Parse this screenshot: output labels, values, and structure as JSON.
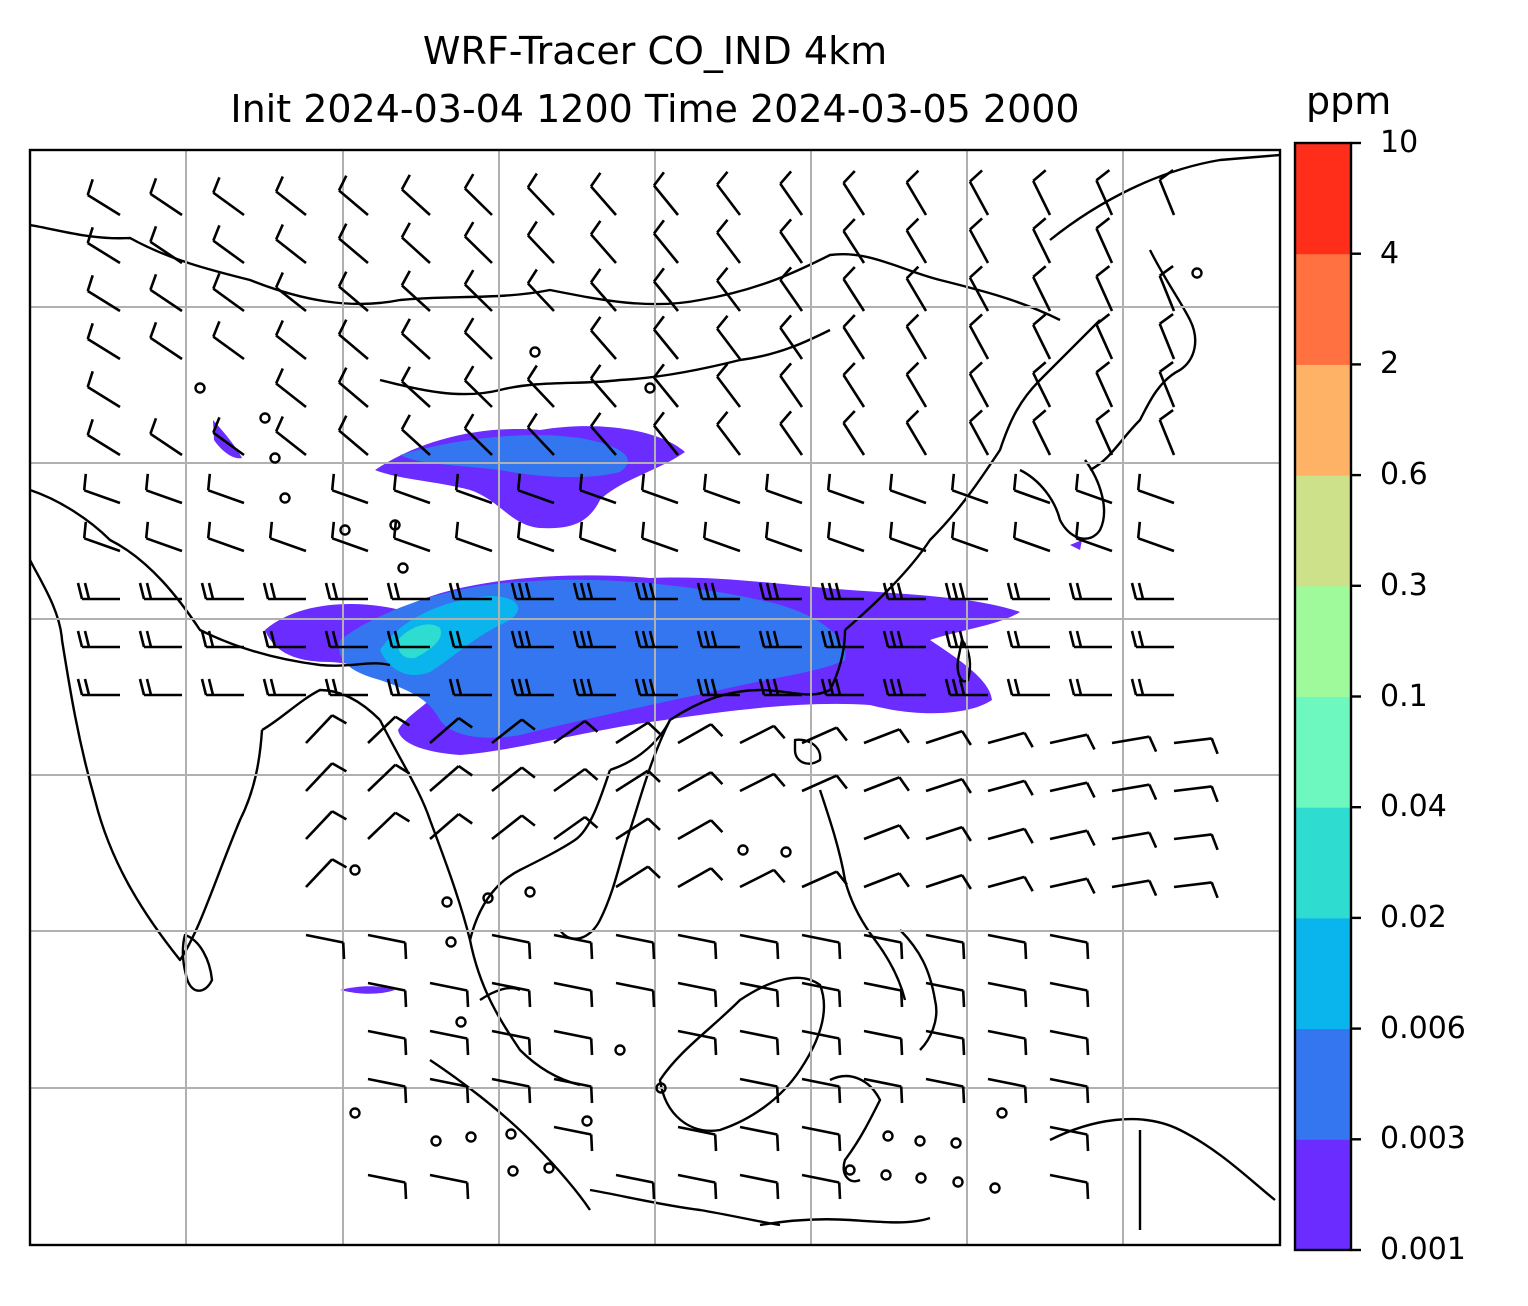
{
  "title_line1": "WRF-Tracer CO_IND 4km",
  "title_line2": "Init 2024-03-04 1200 Time 2024-03-05 2000",
  "colorbar": {
    "unit": "ppm",
    "levels": [
      "0.001",
      "0.003",
      "0.006",
      "0.02",
      "0.04",
      "0.1",
      "0.3",
      "0.6",
      "2",
      "4",
      "10"
    ],
    "colors": [
      "#6a2cff",
      "#3476f0",
      "#0ab4ec",
      "#2fdcd0",
      "#6cf8bf",
      "#9efa9a",
      "#cde08a",
      "#feb266",
      "#ff7140",
      "#ff2e1a"
    ]
  },
  "map": {
    "gridlines": true,
    "plume_colors": [
      "#6a2cff",
      "#3476f0",
      "#0ab4ec",
      "#2fdcd0"
    ],
    "wind_barbs": true
  }
}
